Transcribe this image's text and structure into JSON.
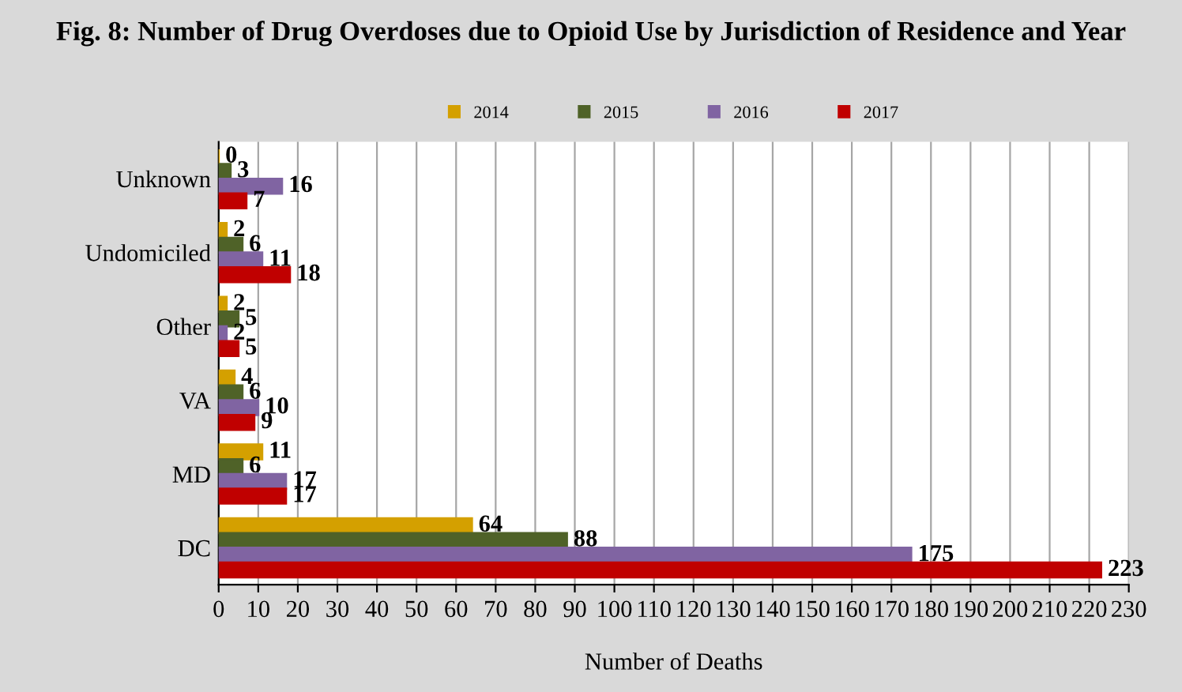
{
  "chart_data": {
    "type": "bar",
    "orientation": "horizontal",
    "title": "Fig. 8: Number of Drug Overdoses due to Opioid Use by Jurisdiction of Residence and Year",
    "xlabel": "Number of Deaths",
    "categories": [
      "Unknown",
      "Undomiciled",
      "Other",
      "VA",
      "MD",
      "DC"
    ],
    "series": [
      {
        "name": "2014",
        "color": "#d4a000",
        "values": [
          0,
          2,
          2,
          4,
          11,
          64
        ]
      },
      {
        "name": "2015",
        "color": "#4f6228",
        "values": [
          3,
          6,
          5,
          6,
          6,
          88
        ]
      },
      {
        "name": "2016",
        "color": "#8064a2",
        "values": [
          16,
          11,
          2,
          10,
          17,
          175
        ]
      },
      {
        "name": "2017",
        "color": "#c00000",
        "values": [
          7,
          18,
          5,
          9,
          17,
          223
        ]
      }
    ],
    "xlim": [
      0,
      230
    ],
    "xticks": [
      0,
      10,
      20,
      30,
      40,
      50,
      60,
      70,
      80,
      90,
      100,
      110,
      120,
      130,
      140,
      150,
      160,
      170,
      180,
      190,
      200,
      210,
      220,
      230
    ],
    "grid": "x",
    "legend": "top",
    "data_labels": true
  }
}
